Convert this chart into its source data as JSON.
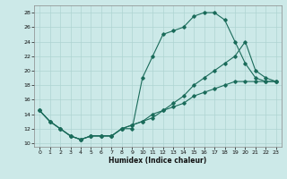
{
  "xlabel": "Humidex (Indice chaleur)",
  "bg_color": "#cce9e8",
  "line_color": "#1a6b5a",
  "grid_color": "#aed4d2",
  "xlim": [
    -0.5,
    23.5
  ],
  "ylim": [
    9.5,
    29
  ],
  "xticks": [
    0,
    1,
    2,
    3,
    4,
    5,
    6,
    7,
    8,
    9,
    10,
    11,
    12,
    13,
    14,
    15,
    16,
    17,
    18,
    19,
    20,
    21,
    22,
    23
  ],
  "yticks": [
    10,
    12,
    14,
    16,
    18,
    20,
    22,
    24,
    26,
    28
  ],
  "series": [
    {
      "x": [
        0,
        1,
        2,
        3,
        4,
        5,
        6,
        7,
        8,
        9,
        10,
        11,
        12,
        13,
        14,
        15,
        16,
        17,
        18,
        19,
        20,
        21,
        22,
        23
      ],
      "y": [
        14.5,
        13,
        12,
        11,
        10.5,
        11,
        11,
        11,
        12,
        12,
        19,
        22,
        25,
        25.5,
        26,
        27.5,
        28,
        28,
        27,
        24,
        21,
        19,
        18.5,
        18.5
      ]
    },
    {
      "x": [
        0,
        1,
        2,
        3,
        4,
        5,
        6,
        7,
        8,
        9,
        10,
        11,
        12,
        13,
        14,
        15,
        16,
        17,
        18,
        19,
        20,
        21,
        22,
        23
      ],
      "y": [
        14.5,
        13,
        12,
        11,
        10.5,
        11,
        11,
        11,
        12,
        12.5,
        13,
        13.5,
        14.5,
        15.5,
        16.5,
        18,
        19,
        20,
        21,
        22,
        24,
        20,
        19,
        18.5
      ]
    },
    {
      "x": [
        0,
        1,
        2,
        3,
        4,
        5,
        6,
        7,
        8,
        9,
        10,
        11,
        12,
        13,
        14,
        15,
        16,
        17,
        18,
        19,
        20,
        21,
        22,
        23
      ],
      "y": [
        14.5,
        13,
        12,
        11,
        10.5,
        11,
        11,
        11,
        12,
        12.5,
        13,
        14,
        14.5,
        15,
        15.5,
        16.5,
        17,
        17.5,
        18,
        18.5,
        18.5,
        18.5,
        18.5,
        18.5
      ]
    }
  ]
}
